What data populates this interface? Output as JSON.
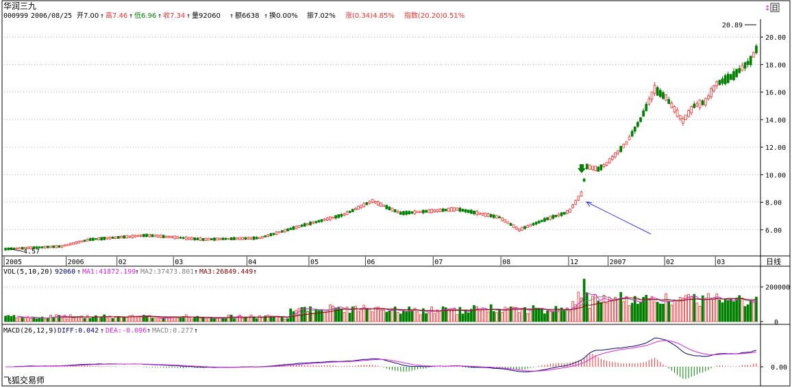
{
  "header": {
    "stock_name": "华润三九",
    "code": "000999",
    "date": "2006/08/25",
    "open_label": "开7.00",
    "high_label": "高7.46",
    "low_label": "低6.96",
    "close_label": "收7.34",
    "volume_label": "量92060",
    "amount_label": "额6638",
    "turnover_label": "换0.00%",
    "amplitude_label": "振7.02%",
    "change_label": "涨(0.34)4.85%",
    "index_label": "指数(20.20)0.51%",
    "arrow": "↑",
    "corner_icon_label": "日"
  },
  "colors": {
    "up": "#ff2a2a",
    "down": "#008000",
    "grid": "#808080",
    "ma1": "#e020e0",
    "ma2": "#808080",
    "ma3": "#8b0000",
    "diff": "#000080",
    "dea": "#e020e0",
    "annotation_arrow": "#3030ff"
  },
  "chart_data": {
    "type": "candlestick",
    "price_axis": {
      "ticks": [
        "20.00",
        "18.00",
        "16.00",
        "14.00",
        "12.00",
        "10.00",
        "8.00",
        "6.00"
      ],
      "ylim": [
        4.2,
        21.2
      ],
      "max_marker": "20.89",
      "min_marker": "4.57"
    },
    "time_axis_labels": [
      "2005",
      "2006",
      "02",
      "03",
      "04",
      "05",
      "06",
      "07",
      "08",
      "12",
      "2007",
      "02",
      "03"
    ],
    "time_axis_label_index": [
      0,
      22,
      40,
      60,
      86,
      108,
      128,
      152,
      176,
      200,
      214,
      234,
      252
    ],
    "right_label_time": "日线",
    "trend_anchors": [
      [
        0,
        4.6
      ],
      [
        20,
        4.8
      ],
      [
        30,
        5.3
      ],
      [
        50,
        5.6
      ],
      [
        70,
        5.3
      ],
      [
        90,
        5.4
      ],
      [
        105,
        6.3
      ],
      [
        120,
        7.1
      ],
      [
        130,
        8.1
      ],
      [
        140,
        7.2
      ],
      [
        160,
        7.5
      ],
      [
        175,
        6.9
      ],
      [
        182,
        6.0
      ],
      [
        192,
        6.8
      ],
      [
        198,
        7.2
      ],
      [
        200,
        7.4
      ],
      [
        204,
        8.6
      ],
      [
        206,
        10.6
      ],
      [
        210,
        10.4
      ],
      [
        213,
        10.8
      ],
      [
        220,
        12.3
      ],
      [
        225,
        14.0
      ],
      [
        230,
        16.2
      ],
      [
        234,
        15.6
      ],
      [
        240,
        13.9
      ],
      [
        244,
        15.0
      ],
      [
        248,
        15.3
      ],
      [
        252,
        16.6
      ],
      [
        258,
        17.2
      ],
      [
        264,
        18.3
      ],
      [
        266,
        19.1
      ]
    ],
    "candle_count": 267,
    "vol_panel": {
      "title": "VOL(5,10,20)",
      "last_volume": "92060",
      "ma1_label": "MA1:41872.199",
      "ma2_label": "MA2:37473.801",
      "ma3_label": "MA3:26849.449",
      "ticks": [
        "200000",
        "0"
      ],
      "ylim": [
        0,
        260000
      ]
    },
    "macd_panel": {
      "title": "MACD(26,12,9)",
      "diff_label": "DIFF:0.042",
      "dea_label": "DEA:-0.096",
      "macd_label": "MACD:0.277",
      "ticks": [
        "0.00"
      ]
    }
  },
  "footer": {
    "software_name": "飞狐交易师"
  }
}
